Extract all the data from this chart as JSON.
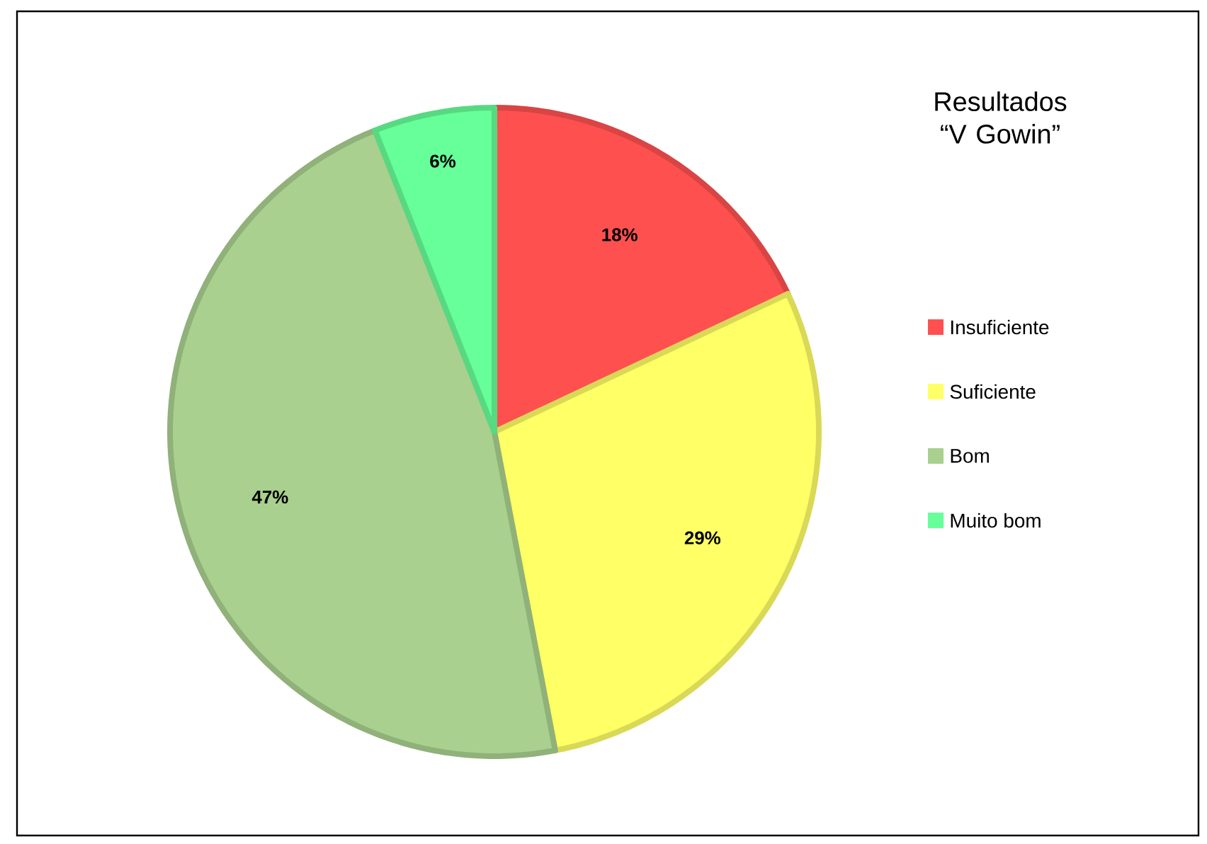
{
  "chart_data": {
    "type": "pie",
    "title": "Resultados “V Gowin”",
    "categories": [
      "Insuficiente",
      "Suficiente",
      "Bom",
      "Muito bom"
    ],
    "values": [
      18,
      29,
      47,
      6
    ],
    "value_labels": [
      "18%",
      "29%",
      "47%",
      "6%"
    ],
    "colors": [
      "#ff5050",
      "#ffff66",
      "#a9d08e",
      "#66ff99"
    ],
    "legend": "right"
  }
}
